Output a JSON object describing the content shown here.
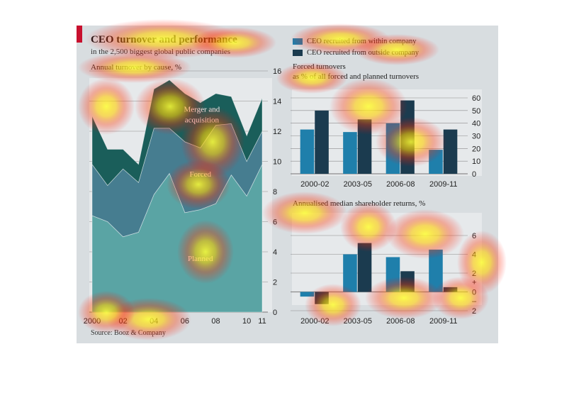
{
  "header": {
    "title": "CEO turnover and performance",
    "subtitle": "in the 2,500 biggest global public companies"
  },
  "source": "Source: Booz & Company",
  "legend": [
    {
      "label": "CEO recruited from within company",
      "color": "#1f7fab"
    },
    {
      "label": "CEO recruited from outside company",
      "color": "#1b3b4f"
    }
  ],
  "colors": {
    "planned": "#5aa4a4",
    "forced": "#467d90",
    "merger": "#1a5e5a",
    "inside": "#1f7fab",
    "outside": "#1b3b4f",
    "card": "#d8dde0"
  },
  "chart_data": [
    {
      "type": "area",
      "title": "Annual turnover by cause, %",
      "x": [
        2000,
        2001,
        2002,
        2003,
        2004,
        2005,
        2006,
        2007,
        2008,
        2009,
        2010,
        2011
      ],
      "x_tick_labels": [
        "2000",
        "02",
        "04",
        "06",
        "08",
        "10",
        "11"
      ],
      "x_tick_values": [
        2000,
        2002,
        2004,
        2006,
        2008,
        2010,
        2011
      ],
      "series": [
        {
          "name": "Planned",
          "values": [
            6.4,
            6.0,
            5.0,
            5.3,
            7.8,
            9.2,
            6.6,
            6.8,
            7.2,
            9.1,
            7.7,
            9.8
          ]
        },
        {
          "name": "Forced",
          "values": [
            3.4,
            2.4,
            4.5,
            3.3,
            4.4,
            3.0,
            4.7,
            4.1,
            5.2,
            3.4,
            2.3,
            2.2
          ]
        },
        {
          "name": "Merger and acquisition",
          "values": [
            3.2,
            2.4,
            1.3,
            1.2,
            2.6,
            3.2,
            3.2,
            3.0,
            2.1,
            1.8,
            1.7,
            2.2
          ]
        }
      ],
      "stacked": true,
      "ylim": [
        0,
        16
      ],
      "y_ticks": [
        0,
        2,
        4,
        6,
        8,
        10,
        12,
        14,
        16
      ],
      "y_axis_side": "right",
      "grid": true
    },
    {
      "type": "bar",
      "title": "Forced turnovers",
      "subtitle": "as % of all forced and planned turnovers",
      "categories": [
        "2000-02",
        "2003-05",
        "2006-08",
        "2009-11"
      ],
      "series": [
        {
          "name": "CEO recruited from within company",
          "values": [
            35,
            33,
            40,
            19
          ]
        },
        {
          "name": "CEO recruited from outside company",
          "values": [
            50,
            43,
            58,
            35
          ]
        }
      ],
      "ylim": [
        0,
        60
      ],
      "y_ticks": [
        0,
        10,
        20,
        30,
        40,
        50,
        60
      ],
      "y_axis_side": "right",
      "grid": true
    },
    {
      "type": "bar",
      "title": "Annualised median shareholder returns, %",
      "categories": [
        "2000-02",
        "2003-05",
        "2006-08",
        "2009-11"
      ],
      "series": [
        {
          "name": "CEO recruited from within company",
          "values": [
            -0.5,
            4.0,
            3.7,
            4.5
          ]
        },
        {
          "name": "CEO recruited from outside company",
          "values": [
            -1.3,
            5.2,
            2.2,
            0.5
          ]
        }
      ],
      "ylim": [
        -2,
        6
      ],
      "y_ticks": [
        -2,
        0,
        2,
        4,
        6
      ],
      "y_tick_labels": [
        "2",
        "0",
        "2",
        "4",
        "6"
      ],
      "y_sign_labels": [
        "+",
        "–"
      ],
      "y_axis_side": "right",
      "grid": true
    }
  ]
}
